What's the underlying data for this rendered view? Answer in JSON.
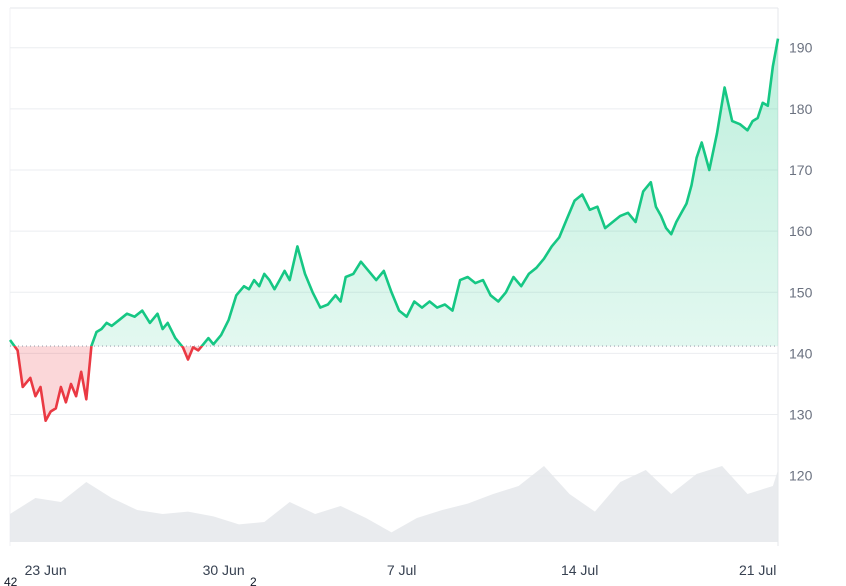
{
  "chart_data": {
    "type": "area",
    "title": "",
    "xlabel": "",
    "ylabel": "",
    "ylim": [
      108.5,
      196.5
    ],
    "xlim_days": [
      0,
      30.2
    ],
    "baseline": 141.2,
    "colors": {
      "up_line": "#16c784",
      "down_line": "#ea3943",
      "up_fill": "#16c784",
      "down_fill": "#ea3943",
      "volume": "#e5e7eb",
      "baseline_dots": "#9ca3af"
    },
    "y_ticks": [
      "120",
      "130",
      "140",
      "150",
      "160",
      "170",
      "180",
      "190"
    ],
    "y_tick_values": [
      120,
      130,
      140,
      150,
      160,
      170,
      180,
      190
    ],
    "x_ticks": [
      "23 Jun",
      "30 Jun",
      "7 Jul",
      "14 Jul",
      "21 Jul"
    ],
    "x_tick_days": [
      1.4,
      8.4,
      15.4,
      22.4,
      29.4
    ],
    "price_series": {
      "name": "",
      "days": [
        0,
        0.3,
        0.5,
        0.8,
        1.0,
        1.2,
        1.4,
        1.6,
        1.8,
        2.0,
        2.2,
        2.4,
        2.6,
        2.8,
        3.0,
        3.2,
        3.4,
        3.6,
        3.8,
        4.0,
        4.3,
        4.6,
        4.9,
        5.2,
        5.5,
        5.8,
        6.0,
        6.2,
        6.5,
        6.8,
        7.0,
        7.2,
        7.4,
        7.6,
        7.8,
        8.0,
        8.3,
        8.6,
        8.9,
        9.2,
        9.4,
        9.6,
        9.8,
        10.0,
        10.2,
        10.4,
        10.6,
        10.8,
        11.0,
        11.3,
        11.6,
        11.9,
        12.2,
        12.5,
        12.8,
        13.0,
        13.2,
        13.5,
        13.8,
        14.1,
        14.4,
        14.7,
        15.0,
        15.3,
        15.6,
        15.9,
        16.2,
        16.5,
        16.8,
        17.1,
        17.4,
        17.7,
        18.0,
        18.3,
        18.6,
        18.9,
        19.2,
        19.5,
        19.8,
        20.1,
        20.4,
        20.7,
        21.0,
        21.3,
        21.6,
        21.9,
        22.2,
        22.5,
        22.8,
        23.1,
        23.4,
        23.7,
        24.0,
        24.3,
        24.6,
        24.9,
        25.2,
        25.4,
        25.6,
        25.8,
        26.0,
        26.2,
        26.4,
        26.6,
        26.8,
        27.0,
        27.2,
        27.5,
        27.8,
        28.1,
        28.4,
        28.7,
        29.0,
        29.2,
        29.4,
        29.6,
        29.8,
        30.0,
        30.2
      ],
      "values": [
        142.2,
        140.5,
        134.5,
        136.0,
        133.0,
        134.5,
        129.0,
        130.5,
        131.0,
        134.5,
        132.0,
        135.0,
        133.0,
        137.0,
        132.5,
        141.2,
        143.5,
        144.0,
        145.0,
        144.5,
        145.5,
        146.5,
        146.0,
        147.0,
        145.0,
        146.5,
        144.0,
        145.0,
        142.5,
        141.0,
        139.0,
        141.0,
        140.5,
        141.5,
        142.5,
        141.5,
        143.0,
        145.5,
        149.5,
        151.0,
        150.5,
        152.0,
        151.0,
        153.0,
        152.0,
        150.5,
        152.0,
        153.5,
        152.0,
        157.5,
        153.0,
        150.0,
        147.5,
        148.0,
        149.5,
        148.5,
        152.5,
        153.0,
        155.0,
        153.5,
        152.0,
        153.5,
        150.0,
        147.0,
        146.0,
        148.5,
        147.5,
        148.5,
        147.5,
        148.0,
        147.0,
        152.0,
        152.5,
        151.5,
        152.0,
        149.5,
        148.5,
        150.0,
        152.5,
        151.0,
        153.0,
        154.0,
        155.5,
        157.5,
        159.0,
        162.0,
        165.0,
        166.0,
        163.5,
        164.0,
        160.5,
        161.5,
        162.5,
        163.0,
        161.5,
        166.5,
        168.0,
        164.0,
        162.5,
        160.5,
        159.5,
        161.5,
        163.0,
        164.5,
        167.5,
        172.0,
        174.5,
        170.0,
        176.0,
        183.5,
        178.0,
        177.5,
        176.5,
        178.0,
        178.5,
        181.0,
        180.5,
        187.0,
        191.5
      ]
    },
    "volume_series": {
      "name": "",
      "days": [
        0,
        1,
        2,
        3,
        4,
        5,
        6,
        7,
        8,
        9,
        10,
        11,
        12,
        13,
        14,
        15,
        16,
        17,
        18,
        19,
        20,
        21,
        22,
        23,
        24,
        25,
        26,
        27,
        28,
        29,
        30,
        30.2
      ],
      "values": [
        0.35,
        0.55,
        0.5,
        0.75,
        0.55,
        0.4,
        0.35,
        0.38,
        0.32,
        0.22,
        0.25,
        0.5,
        0.35,
        0.45,
        0.3,
        0.12,
        0.3,
        0.4,
        0.48,
        0.6,
        0.7,
        0.95,
        0.6,
        0.38,
        0.75,
        0.9,
        0.6,
        0.85,
        0.95,
        0.6,
        0.7,
        0.9
      ]
    },
    "stray_labels": [
      "42",
      "2"
    ]
  }
}
